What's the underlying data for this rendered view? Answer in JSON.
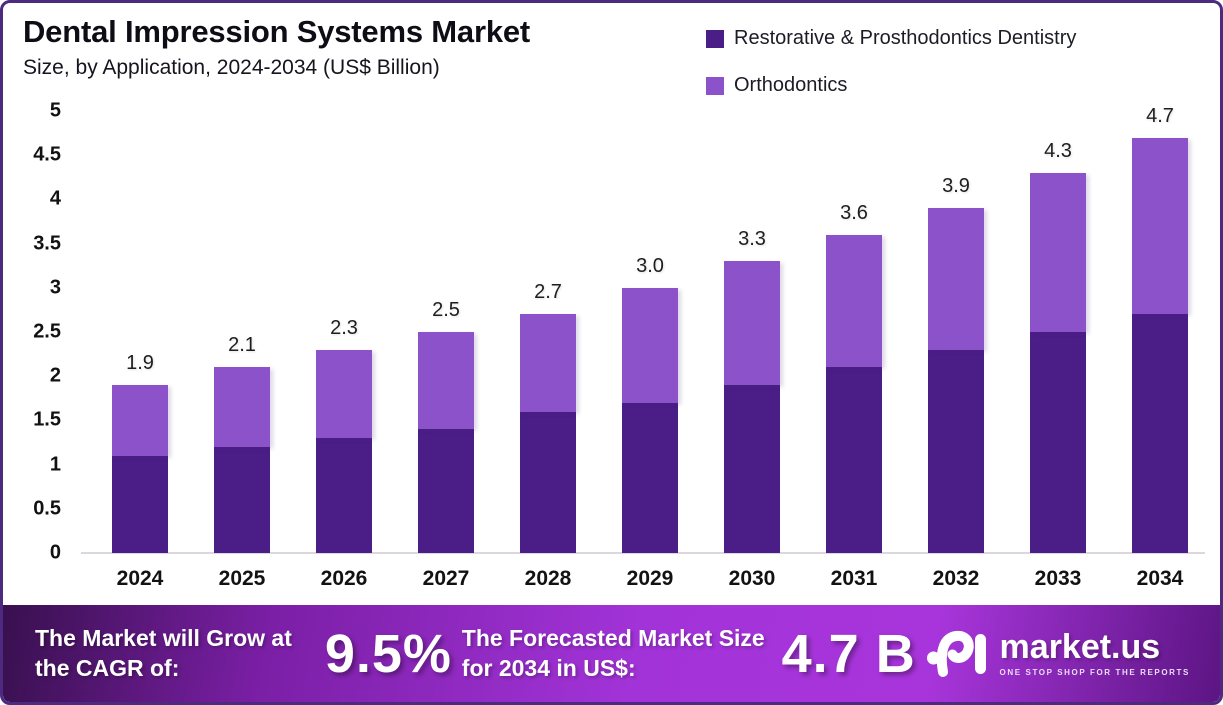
{
  "header": {
    "title": "Dental Impression Systems Market",
    "subtitle": "Size, by Application, 2024-2034 (US$ Billion)"
  },
  "legend": [
    {
      "label": "Restorative & Prosthodontics Dentistry",
      "color": "#4A1D87"
    },
    {
      "label": "Orthodontics",
      "color": "#8C52C9"
    }
  ],
  "chart_data": {
    "type": "bar",
    "stacked": true,
    "title": "Dental Impression Systems Market Size, by Application, 2024-2034 (US$ Billion)",
    "categories": [
      "2024",
      "2025",
      "2026",
      "2027",
      "2028",
      "2029",
      "2030",
      "2031",
      "2032",
      "2033",
      "2034"
    ],
    "series": [
      {
        "name": "Restorative & Prosthodontics Dentistry",
        "color": "#4A1D87",
        "values": [
          1.1,
          1.2,
          1.3,
          1.4,
          1.6,
          1.7,
          1.9,
          2.1,
          2.3,
          2.5,
          2.7
        ]
      },
      {
        "name": "Orthodontics",
        "color": "#8C52C9",
        "values": [
          0.8,
          0.9,
          1.0,
          1.1,
          1.1,
          1.3,
          1.4,
          1.5,
          1.6,
          1.8,
          2.0
        ]
      }
    ],
    "total_labels": [
      "1.9",
      "2.1",
      "2.3",
      "2.5",
      "2.7",
      "3.0",
      "3.3",
      "3.6",
      "3.9",
      "4.3",
      "4.7"
    ],
    "xlabel": "",
    "ylabel": "",
    "ylim": [
      0,
      5
    ],
    "y_tick_step": 0.5,
    "y_tick_labels": [
      "0",
      "0.5",
      "1",
      "1.5",
      "2",
      "2.5",
      "3",
      "3.5",
      "4",
      "4.5",
      "5"
    ],
    "grid": false,
    "legend_position": "top-right"
  },
  "footer": {
    "cagr_label": "The Market will Grow at the CAGR of:",
    "cagr_value": "9.5%",
    "forecast_label": "The Forecasted Market Size for 2034 in US$:",
    "forecast_value": "4.7 B",
    "brand": "market.us",
    "brand_tagline": "ONE STOP SHOP FOR THE REPORTS"
  },
  "colors": {
    "restorative": "#4A1D87",
    "orthodontics": "#8C52C9",
    "banner_dark": "#38104E",
    "banner_bright": "#A233D8",
    "border": "#4C2A80",
    "axis_line": "#DCD7DE"
  }
}
